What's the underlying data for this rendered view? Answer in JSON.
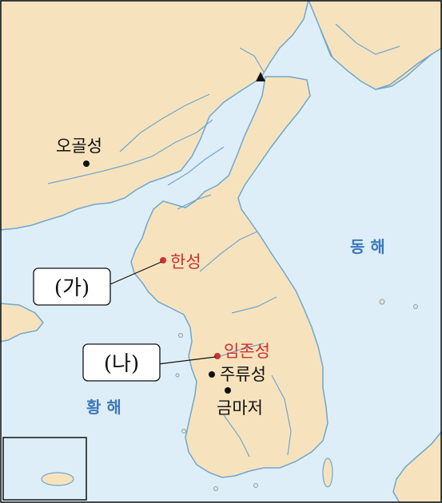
{
  "colors": {
    "sea": "#deeef8",
    "land": "#f6e3bd",
    "coast": "#6fa6cf",
    "river": "#6fa6cf",
    "highlight_text": "#d03030",
    "sea_label": "#3d78b8",
    "dot_black": "#111111",
    "dot_red": "#d03030"
  },
  "places": {
    "ogolseong": "오골성",
    "hanseong": "한성",
    "imjonseong": "임존성",
    "juryuseong": "주류성",
    "geummajeo": "금마저"
  },
  "seas": {
    "east": "동 해",
    "yellow": "황 해"
  },
  "callouts": {
    "ga": "(가)",
    "na": "(나)"
  },
  "icons": {
    "mountain": "triangle-marker-icon"
  }
}
